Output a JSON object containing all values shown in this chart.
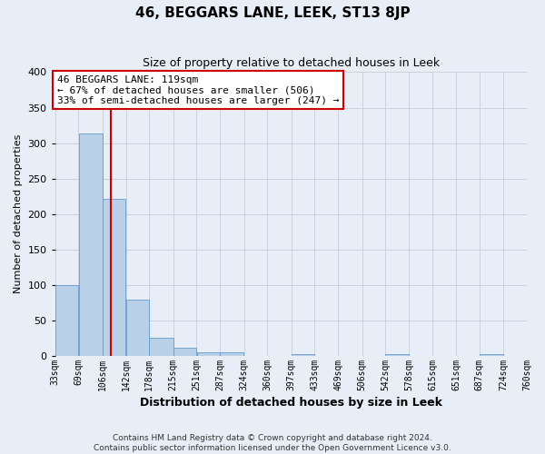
{
  "title": "46, BEGGARS LANE, LEEK, ST13 8JP",
  "subtitle": "Size of property relative to detached houses in Leek",
  "xlabel": "Distribution of detached houses by size in Leek",
  "ylabel": "Number of detached properties",
  "bin_edges": [
    33,
    69,
    106,
    142,
    178,
    215,
    251,
    287,
    324,
    360,
    397,
    433,
    469,
    506,
    542,
    578,
    615,
    651,
    687,
    724,
    760
  ],
  "bar_heights": [
    100,
    313,
    222,
    80,
    25,
    12,
    5,
    5,
    0,
    0,
    3,
    0,
    0,
    0,
    3,
    0,
    0,
    0,
    3,
    0
  ],
  "bar_color": "#b8d0e8",
  "bar_edge_color": "#6699cc",
  "vline_x": 119,
  "vline_color": "#cc0000",
  "ylim": [
    0,
    400
  ],
  "annotation_line1": "46 BEGGARS LANE: 119sqm",
  "annotation_line2": "← 67% of detached houses are smaller (506)",
  "annotation_line3": "33% of semi-detached houses are larger (247) →",
  "annotation_box_color": "#ffffff",
  "annotation_border_color": "#cc0000",
  "footer_text": "Contains HM Land Registry data © Crown copyright and database right 2024.\nContains public sector information licensed under the Open Government Licence v3.0.",
  "background_color": "#e8eef8",
  "grid_color": "#c8ccd8",
  "yticks": [
    0,
    50,
    100,
    150,
    200,
    250,
    300,
    350,
    400
  ]
}
